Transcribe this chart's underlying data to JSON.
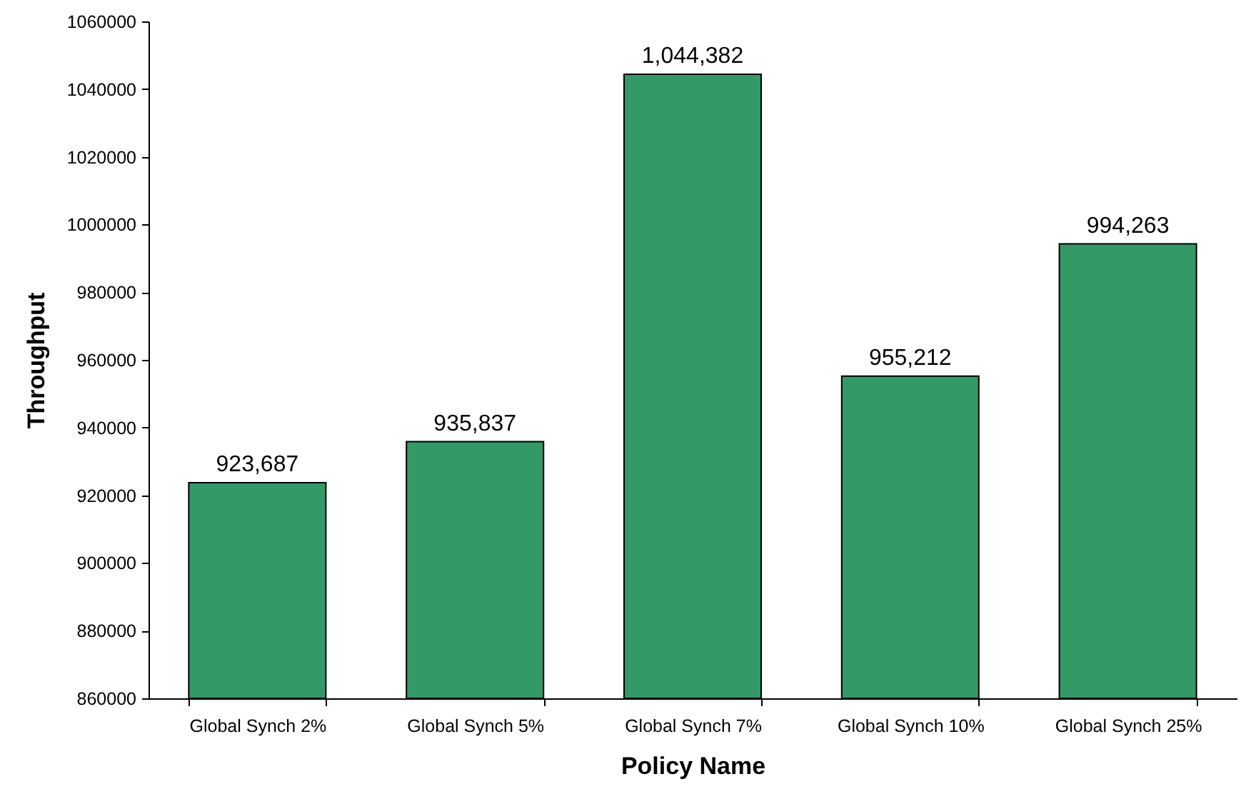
{
  "chart_data": {
    "type": "bar",
    "xlabel": "Policy Name",
    "ylabel": "Throughput",
    "categories": [
      "Global Synch 2%",
      "Global Synch 5%",
      "Global Synch 7%",
      "Global Synch 10%",
      "Global Synch 25%"
    ],
    "values": [
      923687,
      935837,
      1044382,
      955212,
      994263
    ],
    "value_labels": [
      "923,687",
      "935,837",
      "1,044,382",
      "955,212",
      "994,263"
    ],
    "color": "#339966",
    "ylim": [
      860000,
      1060000
    ],
    "yticks": [
      860000,
      880000,
      900000,
      920000,
      940000,
      960000,
      980000,
      1000000,
      1020000,
      1040000,
      1060000
    ],
    "grid": false
  }
}
